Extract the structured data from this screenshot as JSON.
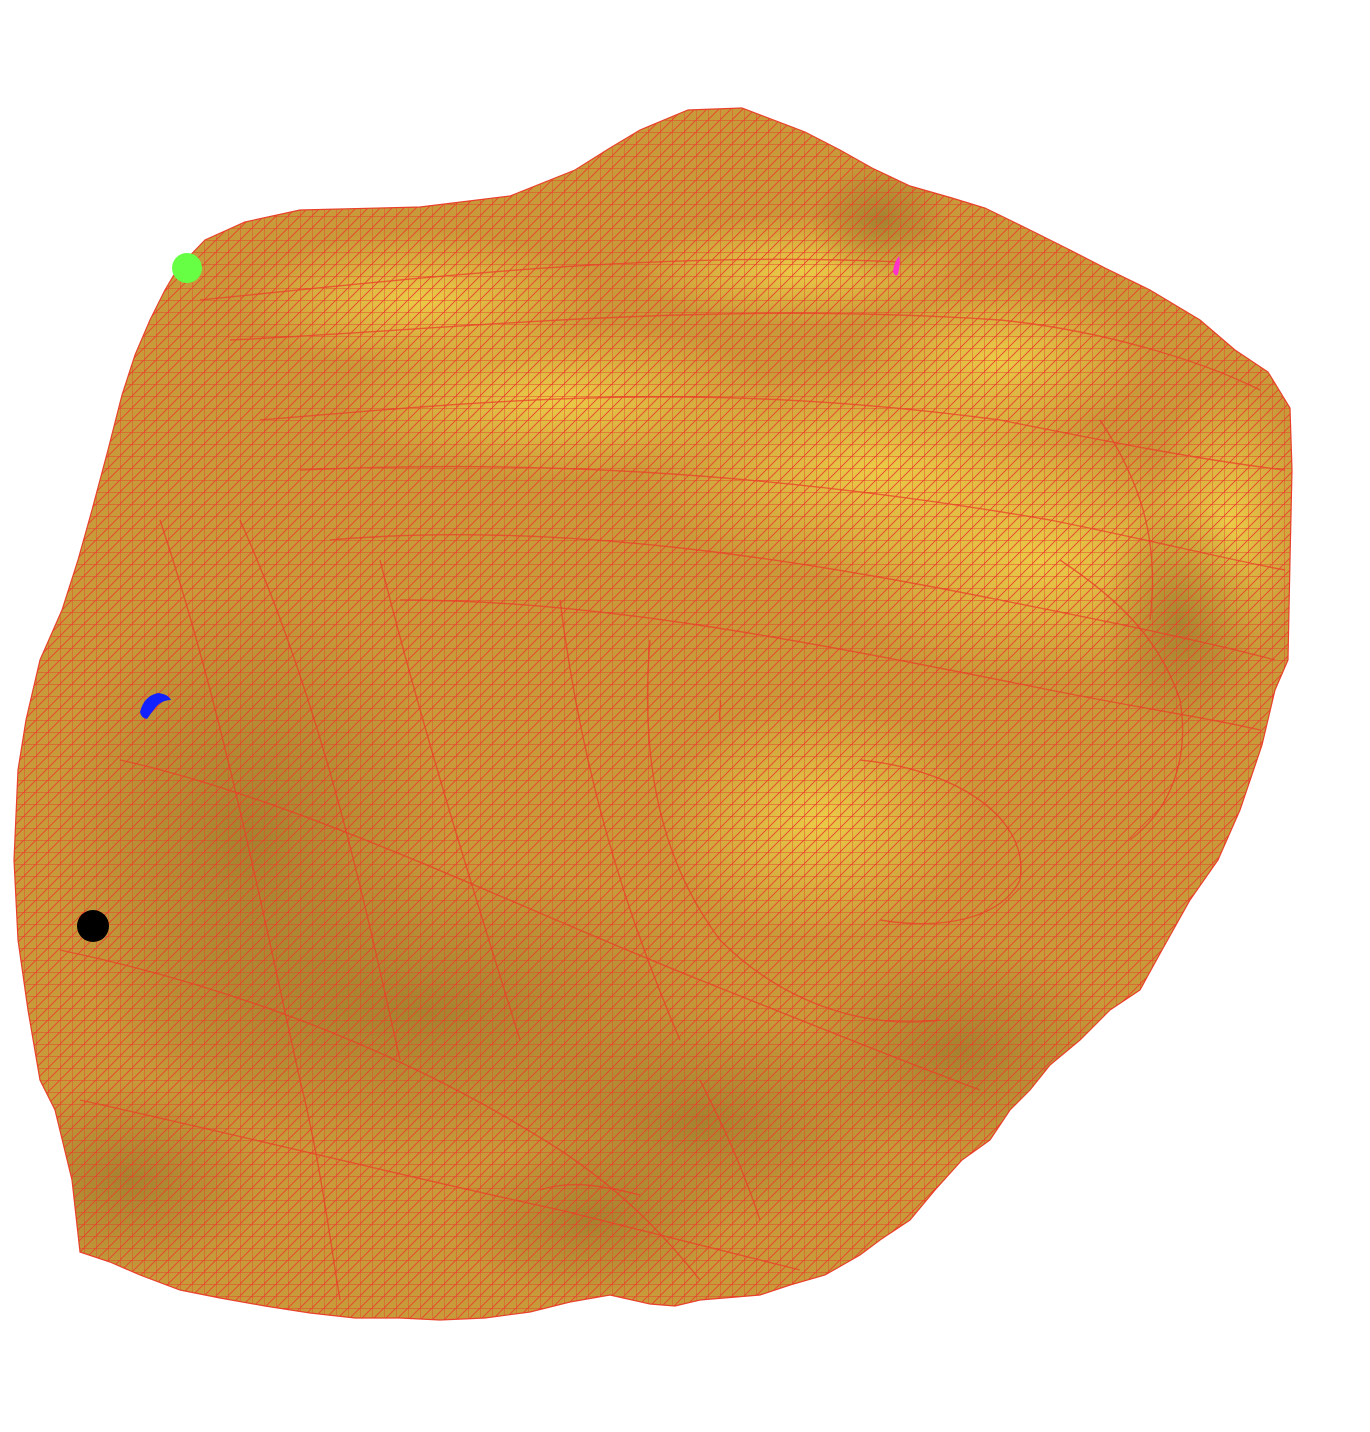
{
  "scene": {
    "background_color": "#ffffff",
    "mesh": {
      "surface_color": "#c89a3a",
      "highlight_color": "#f2d34a",
      "shadow_color": "#9a7a2c",
      "wireframe_color": "#e8402a"
    },
    "markers": [
      {
        "name": "green-marker",
        "color": "#66ff44"
      },
      {
        "name": "magenta-marker",
        "color": "#ff33cc"
      },
      {
        "name": "blue-marker",
        "color": "#1122ff"
      },
      {
        "name": "black-marker",
        "color": "#000000"
      }
    ]
  }
}
